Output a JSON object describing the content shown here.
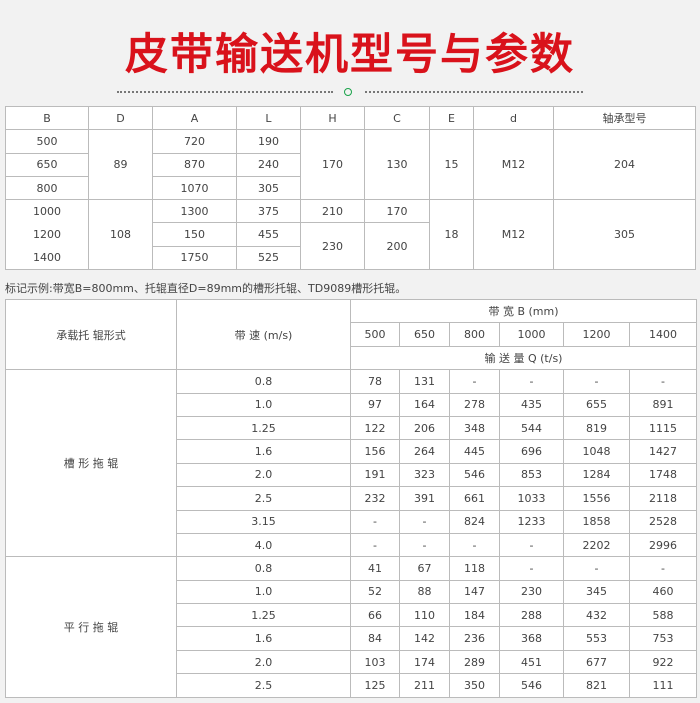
{
  "title": "皮带输送机型号与参数",
  "colors": {
    "title": "#d9121b",
    "divider_circle": "#1aa34a"
  },
  "table1": {
    "headers": [
      "B",
      "D",
      "A",
      "L",
      "H",
      "C",
      "E",
      "d",
      "轴承型号"
    ],
    "group1": {
      "B": [
        "500",
        "650",
        "800"
      ],
      "D": "89",
      "A": [
        "720",
        "870",
        "1070"
      ],
      "L": [
        "190",
        "240",
        "305"
      ],
      "H": "170",
      "C": "130",
      "E": "15",
      "d": "M12",
      "bearing": "204"
    },
    "group2": {
      "B": [
        "1000",
        "1200",
        "1400"
      ],
      "D": "108",
      "A": [
        "1300",
        "150",
        "1750"
      ],
      "L": [
        "375",
        "455",
        "525"
      ],
      "H": [
        "210",
        "230"
      ],
      "C": [
        "170",
        "200"
      ],
      "E": "18",
      "d": "M12",
      "bearing": "305"
    }
  },
  "note": "标记示例:带宽B=800mm、托辊直径D=89mm的槽形托辊、TD9089槽形托辊。",
  "table2": {
    "col_type": "承载托 辊形式",
    "col_speed": "带 速 (m/s)",
    "belt_width_header": "带 宽 B (mm)",
    "widths": [
      "500",
      "650",
      "800",
      "1000",
      "1200",
      "1400"
    ],
    "capacity_header": "输 送 量 Q (t/s)",
    "groups": [
      {
        "type": "槽 形 拖 辊",
        "rows": [
          {
            "speed": "0.8",
            "values": [
              "78",
              "131",
              "-",
              "-",
              "-",
              "-"
            ]
          },
          {
            "speed": "1.0",
            "values": [
              "97",
              "164",
              "278",
              "435",
              "655",
              "891"
            ]
          },
          {
            "speed": "1.25",
            "values": [
              "122",
              "206",
              "348",
              "544",
              "819",
              "1115"
            ]
          },
          {
            "speed": "1.6",
            "values": [
              "156",
              "264",
              "445",
              "696",
              "1048",
              "1427"
            ]
          },
          {
            "speed": "2.0",
            "values": [
              "191",
              "323",
              "546",
              "853",
              "1284",
              "1748"
            ]
          },
          {
            "speed": "2.5",
            "values": [
              "232",
              "391",
              "661",
              "1033",
              "1556",
              "2118"
            ]
          },
          {
            "speed": "3.15",
            "values": [
              "-",
              "-",
              "824",
              "1233",
              "1858",
              "2528"
            ]
          },
          {
            "speed": "4.0",
            "values": [
              "-",
              "-",
              "-",
              "-",
              "2202",
              "2996"
            ]
          }
        ]
      },
      {
        "type": "平 行 拖 辊",
        "rows": [
          {
            "speed": "0.8",
            "values": [
              "41",
              "67",
              "118",
              "-",
              "-",
              "-"
            ]
          },
          {
            "speed": "1.0",
            "values": [
              "52",
              "88",
              "147",
              "230",
              "345",
              "460"
            ]
          },
          {
            "speed": "1.25",
            "values": [
              "66",
              "110",
              "184",
              "288",
              "432",
              "588"
            ]
          },
          {
            "speed": "1.6",
            "values": [
              "84",
              "142",
              "236",
              "368",
              "553",
              "753"
            ]
          },
          {
            "speed": "2.0",
            "values": [
              "103",
              "174",
              "289",
              "451",
              "677",
              "922"
            ]
          },
          {
            "speed": "2.5",
            "values": [
              "125",
              "211",
              "350",
              "546",
              "821",
              "111"
            ]
          }
        ]
      }
    ]
  }
}
